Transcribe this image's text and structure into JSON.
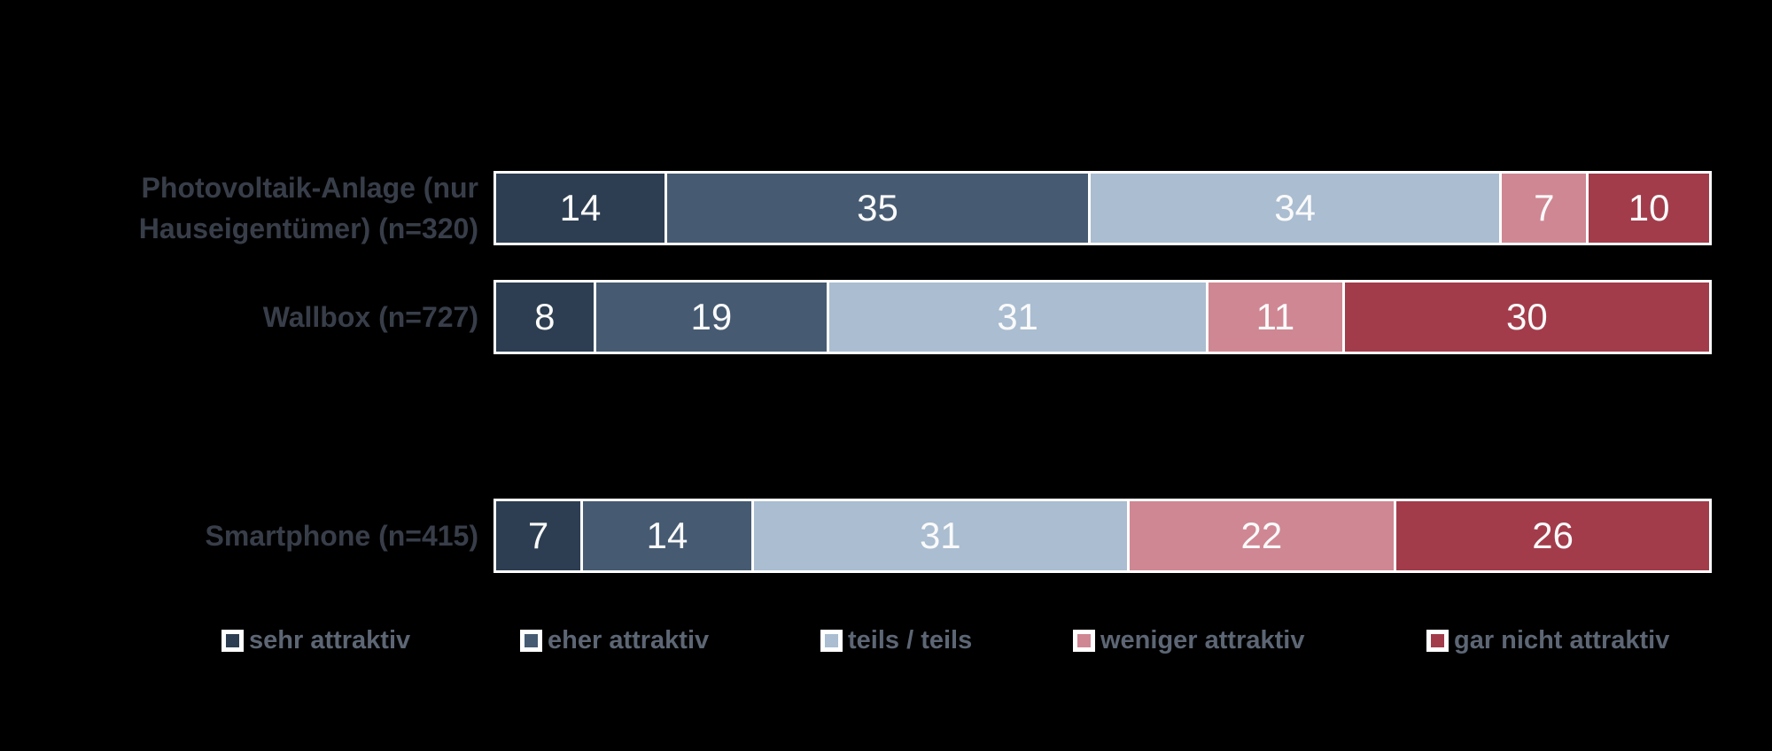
{
  "background_color": "#000000",
  "chart_data": {
    "type": "bar",
    "orientation": "horizontal-stacked",
    "unit": "percent",
    "title": "",
    "xlabel": "",
    "ylabel": "",
    "grid": false,
    "legend_position": "bottom",
    "categories": [
      "Photovoltaik-Anlage (nur Hauseigentümer) (n=320)",
      "Wallbox (n=727)",
      "Smartphone (n=415)"
    ],
    "series": [
      {
        "name": "sehr attraktiv",
        "color": "#2d3e52",
        "values": [
          14,
          8,
          7
        ]
      },
      {
        "name": "eher attraktiv",
        "color": "#465b72",
        "values": [
          35,
          19,
          14
        ]
      },
      {
        "name": "teils / teils",
        "color": "#aabdd1",
        "values": [
          34,
          31,
          31
        ]
      },
      {
        "name": "weniger attraktiv",
        "color": "#cf8793",
        "values": [
          7,
          11,
          22
        ]
      },
      {
        "name": "gar nicht attraktiv",
        "color": "#a23c4b",
        "values": [
          10,
          30,
          26
        ]
      }
    ],
    "rows": [
      {
        "category": "Photovoltaik-Anlage (nur Hauseigentümer) (n=320)",
        "values": [
          14,
          35,
          34,
          7,
          10
        ]
      },
      {
        "category": "Wallbox (n=727)",
        "values": [
          8,
          19,
          31,
          11,
          30
        ]
      },
      {
        "category": "Smartphone (n=415)",
        "values": [
          7,
          14,
          31,
          22,
          26
        ]
      }
    ],
    "value_label_color": "#fafafa",
    "bar_border_color": "#ffffff"
  },
  "styles": {
    "category_label_color": "#383e49",
    "legend_text_color": "#5d6674"
  }
}
